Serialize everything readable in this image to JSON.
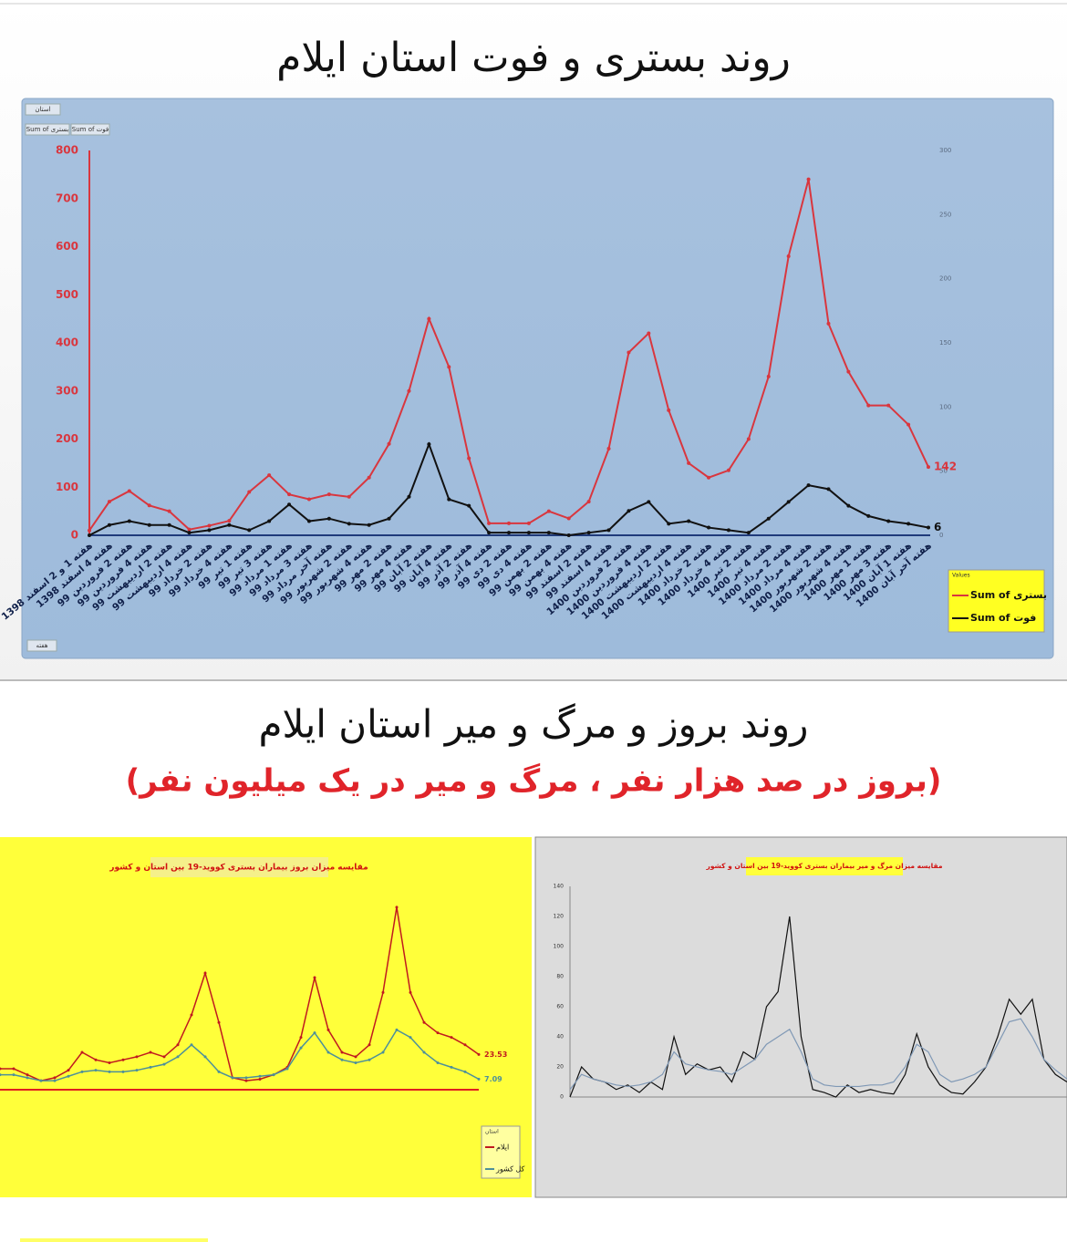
{
  "chart_data": [
    {
      "type": "line",
      "title": "روند بستری و فوت استان ایلام",
      "filter_buttons": [
        "استان",
        "Sum of بستری",
        "Sum of فوت"
      ],
      "axis_button": "هفته",
      "legend_title": "Values",
      "categories": [
        "هفته 1 و 2 اسفند 1398",
        "هفته 4 اسفند 1398",
        "هفته 2 فروردین 99",
        "هفته 4 فروردین 99",
        "هفته 2 اردیبهشت 99",
        "هفته 4 اردیبهشت 99",
        "هفته 2 خرداد 99",
        "هفته 4 خرداد 99",
        "هفته 1 تیر 99",
        "هفته 3 تیر 99",
        "هفته 1 مرداد 99",
        "هفته 3 مرداد 99",
        "هفته آخر مرداد 99",
        "هفته 2 شهریور 99",
        "هفته 4 شهریور 99",
        "هفته 2 مهر 99",
        "هفته 4 مهر 99",
        "هفته 2 آبان 99",
        "هفته 4 آبان 99",
        "هفته 2 آذر 99",
        "هفته 4 آذر 99",
        "هفته 2 دی 99",
        "هفته 4 دی 99",
        "هفته 2 بهمن 99",
        "هفته 4 بهمن 99",
        "هفته 2 اسفند 99",
        "هفته 4 اسفند 99",
        "هفته 2 فروردین 1400",
        "هفته 4 فروردین 1400",
        "هفته 2 اردیبهشت 1400",
        "هفته 4 اردیبهشت 1400",
        "هفته 2 خرداد 1400",
        "هفته 4 خرداد 1400",
        "هفته 2 تیر 1400",
        "هفته 4 تیر 1400",
        "هفته 2 مرداد 1400",
        "هفته 4 مرداد 1400",
        "هفته 2 شهریور 1400",
        "هفته 4 شهریور 1400",
        "هفته 1 مهر 1400",
        "هفته 3 مهر 1400",
        "هفته 1 آبان 1400",
        "هفته آخر آبان 1400"
      ],
      "series": [
        {
          "name": "Sum of بستری",
          "color": "#d9363e",
          "axis": "y",
          "values": [
            10,
            70,
            92,
            62,
            50,
            12,
            20,
            30,
            90,
            125,
            85,
            75,
            85,
            80,
            120,
            190,
            300,
            450,
            350,
            160,
            25,
            25,
            25,
            50,
            35,
            70,
            180,
            380,
            420,
            260,
            150,
            120,
            135,
            200,
            330,
            580,
            740,
            440,
            340,
            270,
            270,
            230,
            142
          ]
        },
        {
          "name": "Sum of فوت",
          "color": "#111111",
          "axis": "y2",
          "values": [
            0,
            8,
            11,
            8,
            8,
            2,
            4,
            8,
            4,
            11,
            24,
            11,
            13,
            9,
            8,
            13,
            30,
            71,
            28,
            23,
            2,
            2,
            2,
            2,
            0,
            2,
            4,
            19,
            26,
            9,
            11,
            6,
            4,
            2,
            13,
            26,
            39,
            36,
            23,
            15,
            11,
            9,
            6
          ]
        }
      ],
      "ylim": [
        0,
        800
      ],
      "yticks": [
        0,
        100,
        200,
        300,
        400,
        500,
        600,
        700,
        800
      ],
      "y2lim": [
        0,
        300
      ],
      "y2ticks": [
        0,
        50,
        100,
        150,
        200,
        250,
        300
      ]
    },
    {
      "type": "line",
      "title": "مقایسه میزان بروز بیماران بستری کووید-19 بین استان و کشور",
      "legend_title": "استان",
      "series": [
        {
          "name": "ایلام",
          "color": "#c0191f",
          "values": [
            14,
            14,
            10,
            6,
            8,
            13,
            25,
            20,
            18,
            20,
            22,
            25,
            22,
            30,
            50,
            78,
            45,
            8,
            6,
            7,
            10,
            15,
            35,
            75,
            40,
            25,
            22,
            30,
            65,
            122,
            65,
            45,
            38,
            35,
            30,
            23.53
          ]
        },
        {
          "name": "کل کشور",
          "color": "#4d8f9a",
          "values": [
            10,
            10,
            8,
            6,
            6,
            9,
            12,
            13,
            12,
            12,
            13,
            15,
            17,
            22,
            30,
            22,
            12,
            8,
            8,
            9,
            10,
            14,
            28,
            38,
            25,
            20,
            18,
            20,
            25,
            40,
            35,
            25,
            18,
            15,
            12,
            7.09
          ]
        }
      ],
      "ylim": [
        0,
        125
      ]
    },
    {
      "type": "line",
      "title": "مقایسه میزان مرگ و میر بیماران بستری کووید-19 بین استان و کشور",
      "series": [
        {
          "color": "#111111",
          "values": [
            0,
            20,
            12,
            10,
            5,
            8,
            3,
            10,
            5,
            40,
            15,
            22,
            18,
            20,
            10,
            30,
            25,
            60,
            70,
            120,
            40,
            5,
            3,
            0,
            8,
            3,
            5,
            3,
            2,
            15,
            42,
            20,
            8,
            3,
            2,
            10,
            20,
            40,
            65,
            55,
            65,
            25,
            15,
            10
          ]
        },
        {
          "color": "#7f98b5",
          "values": [
            5,
            15,
            12,
            10,
            8,
            7,
            8,
            10,
            15,
            30,
            22,
            20,
            18,
            17,
            15,
            20,
            25,
            35,
            40,
            45,
            30,
            12,
            8,
            7,
            7,
            7,
            8,
            8,
            10,
            20,
            35,
            30,
            15,
            10,
            12,
            15,
            20,
            35,
            50,
            52,
            40,
            25,
            18,
            12
          ]
        }
      ],
      "ylim": [
        0,
        140
      ],
      "yticks": [
        0,
        20,
        40,
        60,
        80,
        100,
        120,
        140
      ]
    }
  ],
  "section_2": {
    "title": "روند بروز و مرگ و میر استان ایلام",
    "subtitle": "(بروز در صد هزار نفر ، مرگ و میر در یک میلیون نفر)"
  }
}
